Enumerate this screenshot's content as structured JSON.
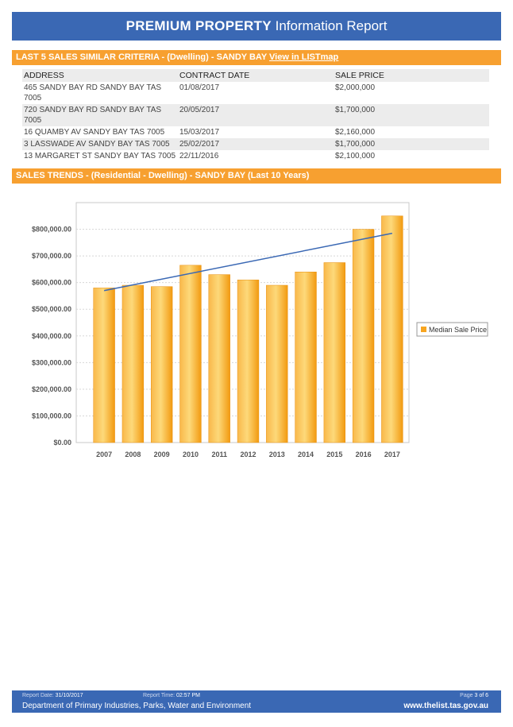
{
  "header": {
    "title_bold": "PREMIUM PROPERTY",
    "title_light": "Information Report"
  },
  "sales_section": {
    "heading": "LAST 5 SALES SIMILAR CRITERIA - (Dwelling) - SANDY BAY",
    "link": "View in LISTmap",
    "columns": [
      "ADDRESS",
      "CONTRACT DATE",
      "SALE PRICE"
    ],
    "rows": [
      {
        "address": "465 SANDY BAY RD SANDY BAY TAS 7005",
        "date": "01/08/2017",
        "price": "$2,000,000"
      },
      {
        "address": "720 SANDY BAY RD SANDY BAY TAS 7005",
        "date": "20/05/2017",
        "price": "$1,700,000"
      },
      {
        "address": "16 QUAMBY AV SANDY BAY TAS 7005",
        "date": "15/03/2017",
        "price": "$2,160,000"
      },
      {
        "address": "3 LASSWADE AV SANDY BAY TAS 7005",
        "date": "25/02/2017",
        "price": "$1,700,000"
      },
      {
        "address": "13 MARGARET ST SANDY BAY TAS 7005",
        "date": "22/11/2016",
        "price": "$2,100,000"
      }
    ]
  },
  "trends_section": {
    "heading": "SALES TRENDS - (Residential - Dwelling) - SANDY BAY (Last 10 Years)"
  },
  "chart_data": {
    "type": "bar",
    "categories": [
      "2007",
      "2008",
      "2009",
      "2010",
      "2011",
      "2012",
      "2013",
      "2014",
      "2015",
      "2016",
      "2017"
    ],
    "series": [
      {
        "name": "Median Sale Price",
        "values": [
          580000,
          590000,
          585000,
          665000,
          630000,
          610000,
          590000,
          640000,
          675000,
          800000,
          850000
        ]
      }
    ],
    "trendline": {
      "start": 570000,
      "end": 785000
    },
    "y_ticks": [
      "$0.00",
      "$100,000.00",
      "$200,000.00",
      "$300,000.00",
      "$400,000.00",
      "$500,000.00",
      "$600,000.00",
      "$700,000.00",
      "$800,000.00"
    ],
    "ylim": [
      0,
      900000
    ],
    "legend_position": "right",
    "grid": true,
    "bar_color": "#f7a520",
    "line_color": "#3a68b4"
  },
  "footer": {
    "report_date_label": "Report Date:",
    "report_date": "31/10/2017",
    "report_time_label": "Report Time:",
    "report_time": "02:57 PM",
    "page_label": "Page",
    "page": "3 of 6",
    "department": "Department of Primary Industries, Parks, Water and Environment",
    "website": "www.thelist.tas.gov.au"
  }
}
